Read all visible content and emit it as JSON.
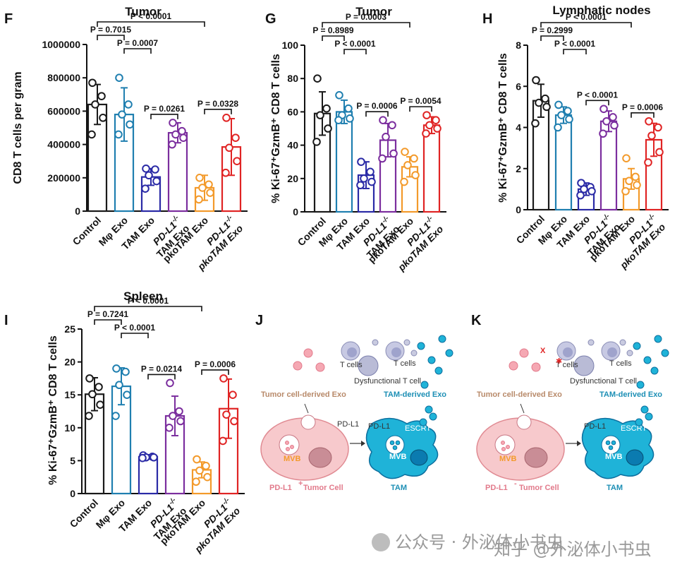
{
  "chart_data": [
    {
      "id": "F",
      "panel": "F",
      "type": "bar",
      "title": "Tumor",
      "ylabel": "CD8 T cells per gram",
      "ylim": [
        0,
        1000000
      ],
      "yticks": [
        "0",
        "200000",
        "400000",
        "600000",
        "800000",
        "1000000"
      ],
      "ytick_values": [
        0,
        200000,
        400000,
        600000,
        800000,
        1000000
      ],
      "categories": [
        {
          "main": "Control"
        },
        {
          "main": "Mφ Exo"
        },
        {
          "main": "TAM Exo"
        },
        {
          "pre": "PD-L1",
          "sup": "-/-",
          "main2": "TAM Exo"
        },
        {
          "main": "pkoTAM Exo"
        },
        {
          "pre": "PD-L1",
          "sup": "-/-",
          "main2": "pkoTAM Exo"
        }
      ],
      "colors": [
        "#1a1a1a",
        "#1f7fb0",
        "#2a2aa6",
        "#7b2e9e",
        "#f39a2b",
        "#e02424"
      ],
      "values": [
        640000,
        580000,
        205000,
        470000,
        140000,
        385000
      ],
      "errors": [
        120000,
        160000,
        50000,
        60000,
        75000,
        170000
      ],
      "points": [
        [
          770000,
          690000,
          640000,
          560000,
          460000
        ],
        [
          800000,
          640000,
          580000,
          520000,
          460000
        ],
        [
          255000,
          250000,
          215000,
          180000,
          135000
        ],
        [
          530000,
          480000,
          460000,
          440000,
          400000
        ],
        [
          200000,
          160000,
          140000,
          110000,
          70000
        ],
        [
          560000,
          440000,
          380000,
          300000,
          230000
        ]
      ],
      "comparisons": [
        {
          "a": 0,
          "b": 1,
          "label": "P = 0.7015",
          "level": 1
        },
        {
          "a": 1,
          "b": 2,
          "label": "P = 0.0007",
          "level": 0
        },
        {
          "a": 0,
          "b": 4,
          "label": "P < 0.0001",
          "level": 2
        },
        {
          "a": 2,
          "b": 3,
          "label": "P = 0.0261",
          "level": -1
        },
        {
          "a": 4,
          "b": 5,
          "label": "P = 0.0328",
          "level": -1
        }
      ]
    },
    {
      "id": "G",
      "panel": "G",
      "type": "bar",
      "title": "Tumor",
      "ylabel": "% Ki-67⁺GzmB⁺ CD8 T cells",
      "ylim": [
        0,
        100
      ],
      "yticks": [
        "0",
        "20",
        "40",
        "60",
        "80",
        "100"
      ],
      "ytick_values": [
        0,
        20,
        40,
        60,
        80,
        100
      ],
      "categories": [
        {
          "main": "Control"
        },
        {
          "main": "Mφ Exo"
        },
        {
          "main": "TAM Exo"
        },
        {
          "pre": "PD-L1",
          "sup": "-/-",
          "main2": "TAM Exo"
        },
        {
          "main": "pkoTAM Exo"
        },
        {
          "pre": "PD-L1",
          "sup": "-/-",
          "main2": "pkoTAM Exo"
        }
      ],
      "colors": [
        "#1a1a1a",
        "#1f7fb0",
        "#2a2aa6",
        "#7b2e9e",
        "#f39a2b",
        "#e02424"
      ],
      "values": [
        59,
        60,
        22,
        43,
        27,
        52
      ],
      "errors": [
        13,
        7,
        8,
        10,
        6,
        5
      ],
      "points": [
        [
          80,
          62,
          58,
          50,
          42
        ],
        [
          70,
          62,
          58,
          56,
          55
        ],
        [
          30,
          24,
          20,
          18,
          16
        ],
        [
          55,
          52,
          45,
          35,
          32
        ],
        [
          36,
          32,
          28,
          22,
          18
        ],
        [
          58,
          55,
          52,
          50,
          47
        ]
      ],
      "comparisons": [
        {
          "a": 0,
          "b": 1,
          "label": "P = 0.8989",
          "level": 1
        },
        {
          "a": 1,
          "b": 2,
          "label": "P < 0.0001",
          "level": 0
        },
        {
          "a": 0,
          "b": 4,
          "label": "P = 0.0003",
          "level": 2
        },
        {
          "a": 2,
          "b": 3,
          "label": "P = 0.0006",
          "level": -1
        },
        {
          "a": 4,
          "b": 5,
          "label": "P = 0.0054",
          "level": -1
        }
      ]
    },
    {
      "id": "H",
      "panel": "H",
      "type": "bar",
      "title": "Lymphatic nodes",
      "ylabel": "% Ki-67⁺GzmB⁺ CD8 T cells",
      "ylim": [
        0,
        8
      ],
      "yticks": [
        "0",
        "2",
        "4",
        "6",
        "8"
      ],
      "ytick_values": [
        0,
        2,
        4,
        6,
        8
      ],
      "categories": [
        {
          "main": "Control"
        },
        {
          "main": "Mφ Exo"
        },
        {
          "main": "TAM Exo"
        },
        {
          "pre": "PD-L1",
          "sup": "-/-",
          "main2": "TAM Exo"
        },
        {
          "main": "pkoTAM Exo"
        },
        {
          "pre": "PD-L1",
          "sup": "-/-",
          "main2": "pkoTAM Exo"
        }
      ],
      "colors": [
        "#1a1a1a",
        "#1f7fb0",
        "#2a2aa6",
        "#7b2e9e",
        "#f39a2b",
        "#e02424"
      ],
      "values": [
        5.3,
        4.6,
        1.0,
        4.3,
        1.5,
        3.4
      ],
      "errors": [
        0.8,
        0.4,
        0.3,
        0.5,
        0.5,
        0.8
      ],
      "points": [
        [
          6.3,
          5.4,
          5.2,
          5.0,
          4.2
        ],
        [
          5.1,
          4.8,
          4.6,
          4.4,
          4.0
        ],
        [
          1.3,
          1.1,
          1.0,
          0.9,
          0.7
        ],
        [
          4.9,
          4.5,
          4.3,
          4.1,
          3.7
        ],
        [
          2.5,
          1.6,
          1.4,
          1.2,
          0.9
        ],
        [
          4.3,
          4.0,
          3.6,
          2.8,
          2.3
        ]
      ],
      "comparisons": [
        {
          "a": 0,
          "b": 1,
          "label": "P = 0.2999",
          "level": 1
        },
        {
          "a": 1,
          "b": 2,
          "label": "P < 0.0001",
          "level": 0
        },
        {
          "a": 0,
          "b": 4,
          "label": "P < 0.0001",
          "level": 2
        },
        {
          "a": 2,
          "b": 3,
          "label": "P < 0.0001",
          "level": -1
        },
        {
          "a": 4,
          "b": 5,
          "label": "P = 0.0006",
          "level": -1
        }
      ]
    },
    {
      "id": "I",
      "panel": "I",
      "type": "bar",
      "title": "Spleen",
      "ylabel": "% Ki-67⁺GzmB⁺ CD8 T cells",
      "ylim": [
        0,
        25
      ],
      "yticks": [
        "0",
        "5",
        "10",
        "15",
        "20",
        "25"
      ],
      "ytick_values": [
        0,
        5,
        10,
        15,
        20,
        25
      ],
      "categories": [
        {
          "main": "Control"
        },
        {
          "main": "Mφ Exo"
        },
        {
          "main": "TAM Exo"
        },
        {
          "pre": "PD-L1",
          "sup": "-/-",
          "main2": "TAM Exo"
        },
        {
          "main": "pkoTAM Exo"
        },
        {
          "pre": "PD-L1",
          "sup": "-/-",
          "main2": "pkoTAM Exo"
        }
      ],
      "colors": [
        "#1a1a1a",
        "#1f7fb0",
        "#2a2aa6",
        "#7b2e9e",
        "#f39a2b",
        "#e02424"
      ],
      "values": [
        15.1,
        16.3,
        5.6,
        11.8,
        3.6,
        12.9
      ],
      "errors": [
        2.5,
        2.8,
        0.3,
        3.0,
        1.2,
        4.5
      ],
      "points": [
        [
          17.5,
          16.2,
          15.1,
          13.5,
          11.8
        ],
        [
          19.0,
          18.5,
          16.5,
          15.0,
          11.8
        ],
        [
          5.8,
          5.6,
          5.5,
          5.5,
          5.4
        ],
        [
          16.8,
          12.5,
          11.8,
          11.0,
          10.0
        ],
        [
          5.2,
          4.2,
          3.5,
          2.5,
          1.8
        ],
        [
          17.5,
          15.0,
          12.0,
          11.0,
          8.0
        ]
      ],
      "comparisons": [
        {
          "a": 0,
          "b": 1,
          "label": "P = 0.7241",
          "level": 1
        },
        {
          "a": 1,
          "b": 2,
          "label": "P < 0.0001",
          "level": 0
        },
        {
          "a": 0,
          "b": 4,
          "label": "P < 0.0001",
          "level": 2
        },
        {
          "a": 2,
          "b": 3,
          "label": "P = 0.0214",
          "level": -1
        },
        {
          "a": 4,
          "b": 5,
          "label": "P = 0.0006",
          "level": -1
        }
      ]
    }
  ],
  "diagrams": {
    "J": {
      "letter": "J",
      "t_cells_a": "T cells",
      "t_cells_b": "T cells",
      "dysfunctional": "Dysfunctional T cell",
      "tumor_exo": "Tumor cell-derived Exo",
      "tam_exo": "TAM-derived Exo",
      "pdl1_a": "PD-L1",
      "pdl1_b": "PD-L1",
      "escrt": "ESCRT",
      "mvb_a": "MVB",
      "mvb_b": "MVB",
      "tumor_cell": "PD-L1",
      "tumor_sup": "+",
      "tumor_cell_rest": " Tumor Cell",
      "tam": "TAM"
    },
    "K": {
      "letter": "K",
      "t_cells_a": "T cells",
      "t_cells_b": "T cells",
      "dysfunctional": "Dysfunctional T cell",
      "tumor_exo": "Tumor cell-derived Exo",
      "tam_exo": "TAM-derived Exo",
      "pdl1_b": "PD-L1",
      "escrt": "ESCRT",
      "mvb_a": "MVB",
      "mvb_b": "MVB",
      "tumor_cell": "PD-L1",
      "tumor_sup": "-",
      "tumor_cell_rest": " Tumor Cell",
      "tam": "TAM"
    }
  },
  "watermark": {
    "left": "公众号 · 外泌体小书虫",
    "right": "知乎 @外泌体小书虫"
  },
  "colors": {
    "tumor_pink": "#f7c9cc",
    "tumor_edge": "#e08a92",
    "tam_cyan": "#1fb3d8",
    "tam_dark": "#0d6f9e",
    "label_pink": "#e27a8b",
    "label_brown": "#b88a6a",
    "label_teal": "#1d8fb5"
  }
}
